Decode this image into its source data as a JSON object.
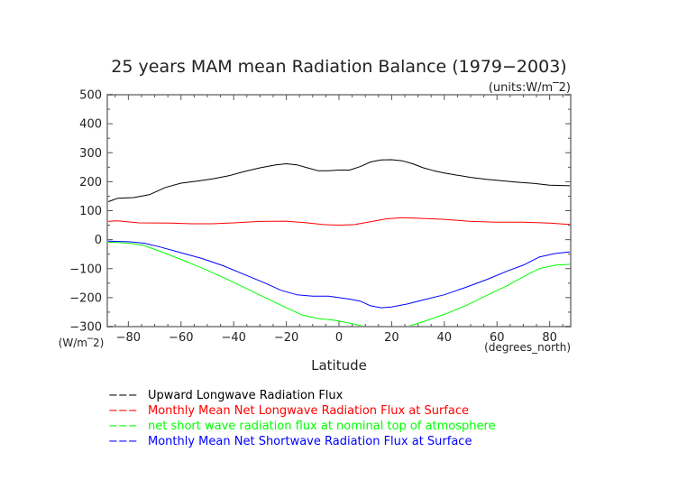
{
  "chart_data": {
    "type": "line",
    "title": "25 years MAM mean Radiation Balance (1979−2003)",
    "units_label": "(units:W/m‾2)",
    "xlabel": "Latitude",
    "x_units": "(degrees_north)",
    "y_units": "(W/m‾2)",
    "xlim": [
      -88,
      88
    ],
    "ylim": [
      -300,
      500
    ],
    "x_ticks": [
      -80,
      -60,
      -40,
      -20,
      0,
      20,
      40,
      60,
      80
    ],
    "x_tick_labels": [
      "−80",
      "−60",
      "−40",
      "−20",
      "0",
      "20",
      "40",
      "60",
      "80"
    ],
    "y_ticks": [
      -300,
      -200,
      -100,
      0,
      100,
      200,
      300,
      400,
      500
    ],
    "y_tick_labels": [
      "−300",
      "−200",
      "−100",
      "0",
      "100",
      "200",
      "300",
      "400",
      "500"
    ],
    "grid": false,
    "legend_position": "bottom",
    "series": [
      {
        "name": "Upward Longwave Radiation Flux",
        "color": "#000000",
        "x": [
          -88,
          -84,
          -78,
          -72,
          -66,
          -60,
          -54,
          -48,
          -42,
          -36,
          -30,
          -24,
          -20,
          -16,
          -12,
          -8,
          -4,
          0,
          4,
          8,
          12,
          16,
          20,
          24,
          28,
          32,
          36,
          40,
          44,
          50,
          56,
          62,
          68,
          74,
          80,
          88
        ],
        "y": [
          130,
          143,
          145,
          155,
          180,
          195,
          202,
          210,
          220,
          235,
          248,
          258,
          262,
          258,
          248,
          238,
          238,
          240,
          240,
          252,
          268,
          275,
          276,
          272,
          262,
          248,
          238,
          230,
          224,
          215,
          208,
          203,
          198,
          194,
          188,
          186
        ]
      },
      {
        "name": "Monthly Mean Net Longwave Radiation Flux at Surface",
        "color": "#ff0000",
        "x": [
          -88,
          -84,
          -76,
          -64,
          -56,
          -48,
          -40,
          -30,
          -20,
          -12,
          -6,
          0,
          6,
          12,
          18,
          24,
          30,
          40,
          50,
          60,
          70,
          80,
          88
        ],
        "y": [
          63,
          65,
          58,
          57,
          55,
          55,
          58,
          63,
          64,
          58,
          52,
          50,
          52,
          62,
          72,
          76,
          74,
          70,
          63,
          60,
          60,
          57,
          52
        ]
      },
      {
        "name": "net short wave radiation flux at nominal top of atmosphere",
        "color": "#00ff00",
        "x": [
          -88,
          -80,
          -74,
          -68,
          -60,
          -52,
          -44,
          -36,
          -28,
          -20,
          -14,
          -8,
          -2,
          4,
          10,
          14,
          20,
          26,
          32,
          40,
          48,
          56,
          64,
          70,
          76,
          82,
          88
        ],
        "y": [
          -8,
          -12,
          -20,
          -40,
          -68,
          -98,
          -130,
          -165,
          -200,
          -235,
          -260,
          -272,
          -278,
          -288,
          -300,
          -310,
          -312,
          -300,
          -283,
          -258,
          -228,
          -193,
          -158,
          -128,
          -100,
          -88,
          -85
        ]
      },
      {
        "name": "Monthly Mean Net Shortwave Radiation Flux at Surface",
        "color": "#0000ff",
        "x": [
          -88,
          -80,
          -74,
          -68,
          -60,
          -52,
          -44,
          -36,
          -28,
          -22,
          -16,
          -10,
          -4,
          0,
          4,
          8,
          12,
          16,
          20,
          26,
          32,
          40,
          48,
          56,
          64,
          70,
          76,
          82,
          88
        ],
        "y": [
          -5,
          -7,
          -12,
          -25,
          -45,
          -65,
          -90,
          -120,
          -150,
          -175,
          -190,
          -195,
          -195,
          -200,
          -205,
          -212,
          -228,
          -235,
          -232,
          -222,
          -208,
          -190,
          -165,
          -138,
          -108,
          -88,
          -60,
          -48,
          -42
        ]
      }
    ],
    "legend_dash": "−−−"
  }
}
